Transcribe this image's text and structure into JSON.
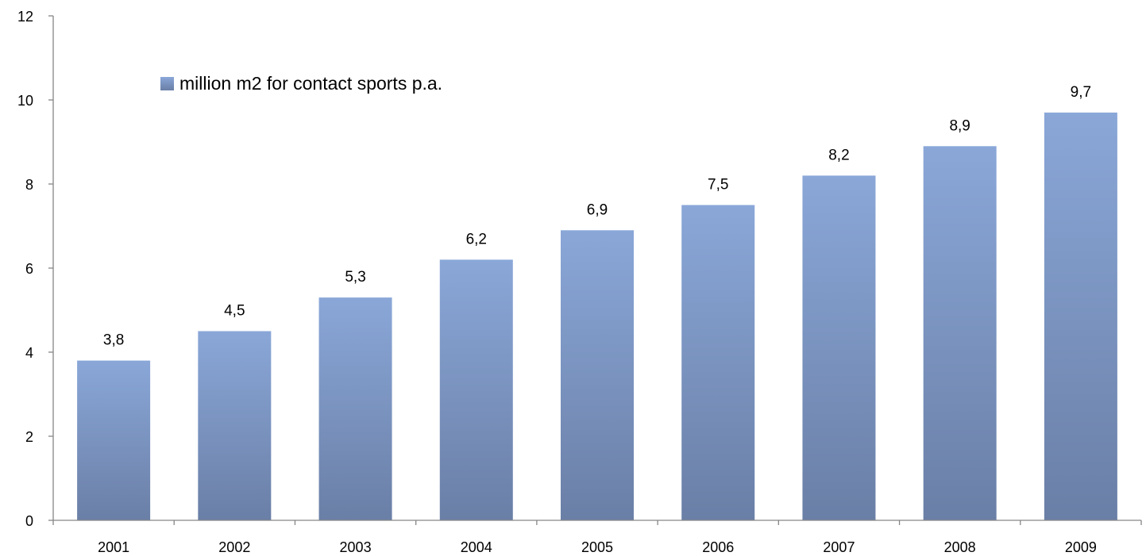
{
  "chart_data": {
    "type": "bar",
    "categories": [
      "2001",
      "2002",
      "2003",
      "2004",
      "2005",
      "2006",
      "2007",
      "2008",
      "2009"
    ],
    "series": [
      {
        "name": "million m2 for contact sports p.a.",
        "values": [
          3.8,
          4.5,
          5.3,
          6.2,
          6.9,
          7.5,
          8.2,
          8.9,
          9.7
        ]
      }
    ],
    "data_labels": [
      "3,8",
      "4,5",
      "5,3",
      "6,2",
      "6,9",
      "7,5",
      "8,2",
      "8,9",
      "9,7"
    ],
    "y_ticks": [
      "0",
      "2",
      "4",
      "6",
      "8",
      "10",
      "12"
    ],
    "ylim": [
      0,
      12
    ],
    "title": "",
    "xlabel": "",
    "ylabel": "",
    "grid": false,
    "legend": {
      "label": "million m2 for contact sports p.a.",
      "position": "top-left"
    },
    "colors": {
      "bar_top": "#8aa7d8",
      "bar_bottom": "#6a7fa6",
      "axis": "#868686"
    }
  }
}
